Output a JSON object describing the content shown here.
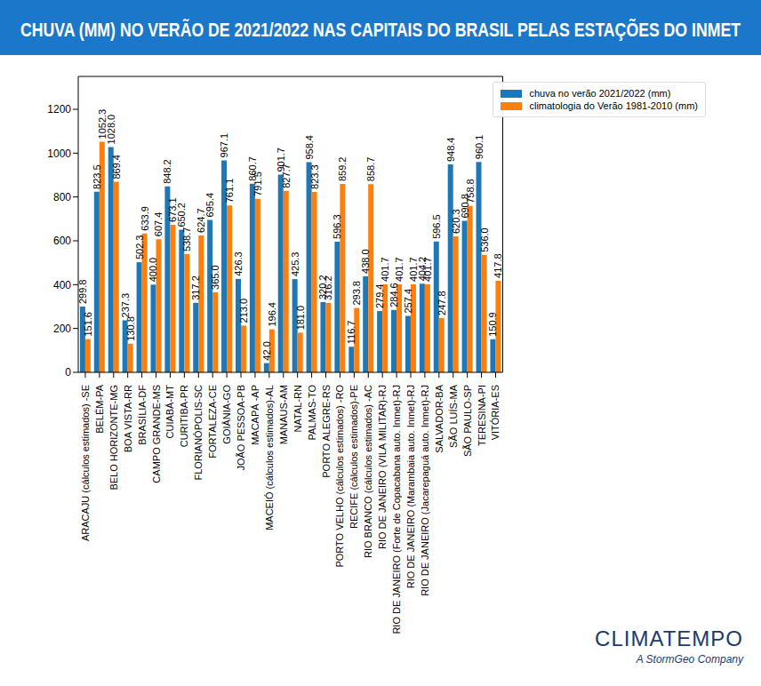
{
  "chart_data": {
    "type": "bar",
    "title": "CHUVA (MM) NO VERÃO DE 2021/2022 NAS CAPITAIS DO BRASIL PELAS ESTAÇÕES DO INMET",
    "annotations": [
      "CLIMATEMPO",
      "A StormGeo Company"
    ],
    "categories": [
      "ARACAJU (cálculos estimados) -SE",
      "BELÉM-PA",
      "BELO HORIZONTE-MG",
      "BOA VISTA-RR",
      "BRASÍLIA-DF",
      "CAMPO GRANDE-MS",
      "CUIABÁ-MT",
      "CURITIBA-PR",
      "FLORIANÓPOLIS-SC",
      "FORTALEZA-CE",
      "GOIÂNIA-GO",
      "JOÃO PESSOA-PB",
      "MACAPÁ -AP",
      "MACEIÓ (cálculos estimados)-AL",
      "MANAUS-AM",
      "NATAL-RN",
      "PALMAS-TO",
      "PORTO ALEGRE-RS",
      "PORTO VELHO (cálculos estimados) -RO",
      "RECIFE (cálculos estimados)-PE",
      "RIO BRANCO (cálculos estimados) -AC",
      "RIO DE JANEIRO (VILA MILITAR)-RJ",
      "RIO DE JANEIRO (Forte de Copacabana auto. Inmet)-RJ",
      "RIO DE JANEIRO (Marambaia auto. Inmet)-RJ",
      "RIO DE JANEIRO (Jacarepaguá auto. Inmet)-RJ",
      "SALVADOR-BA",
      "SÃO LUÍS-MA",
      "SÃO PAULO-SP",
      "TERESINA-PI",
      "VITÓRIA-ES"
    ],
    "series": [
      {
        "name": "chuva no verão 2021/2022 (mm)",
        "color": "#1f77b4",
        "values": [
          299.8,
          823.5,
          1028.0,
          237.3,
          502.3,
          400.0,
          848.2,
          650.2,
          317.2,
          695.4,
          967.1,
          426.3,
          860.7,
          42.0,
          901.7,
          425.3,
          958.4,
          320.2,
          596.3,
          116.7,
          438.0,
          279.4,
          284.6,
          257.4,
          404.2,
          596.5,
          948.4,
          690.8,
          960.1,
          150.9
        ],
        "value_labels": [
          "299.8",
          "823.5",
          "1028.0",
          "237.3",
          "502.3",
          "400.0",
          "848.2",
          "650.2",
          "317.2",
          "695.4",
          "967.1",
          "426.3",
          "860.7",
          "42.0",
          "901.7",
          "425.3",
          "958.4",
          "320.2",
          "596.3",
          "116.7",
          "438.0",
          "279.4",
          "284.6",
          "257.4",
          "404.2",
          "596.5",
          "948.4",
          "690.8",
          "960.1",
          "150.9"
        ]
      },
      {
        "name": "climatologia do Verão 1981-2010 (mm)",
        "color": "#ff7f0e",
        "values": [
          151.6,
          1052.3,
          869.4,
          130.8,
          633.9,
          607.4,
          673.1,
          538.7,
          624.7,
          365.0,
          761.1,
          213.0,
          791.5,
          196.4,
          827.7,
          181.0,
          823.3,
          316.2,
          859.2,
          293.8,
          858.7,
          401.7,
          401.7,
          401.7,
          401.7,
          247.8,
          620.3,
          758.8,
          536.0,
          417.8
        ],
        "value_labels": [
          "151.6",
          "1052.3",
          "869.4",
          "130.8",
          "633.9",
          "607.4",
          "673.1",
          "538.7",
          "624.7",
          "365.0",
          "761.1",
          "213.0",
          "791.5",
          "196.4",
          "827.7",
          "181.0",
          "823.3",
          "316.2",
          "859.2",
          "293.8",
          "858.7",
          "401.7",
          "401.7",
          "401.7",
          "401.7",
          "247.8",
          "620.3",
          "758.8",
          "536.0",
          "417.8"
        ]
      }
    ],
    "ylim": [
      0,
      1350
    ],
    "yticks": [
      0,
      200,
      400,
      600,
      800,
      1000,
      1200
    ],
    "grid": false,
    "legend": "upper right",
    "data_labels": true
  }
}
